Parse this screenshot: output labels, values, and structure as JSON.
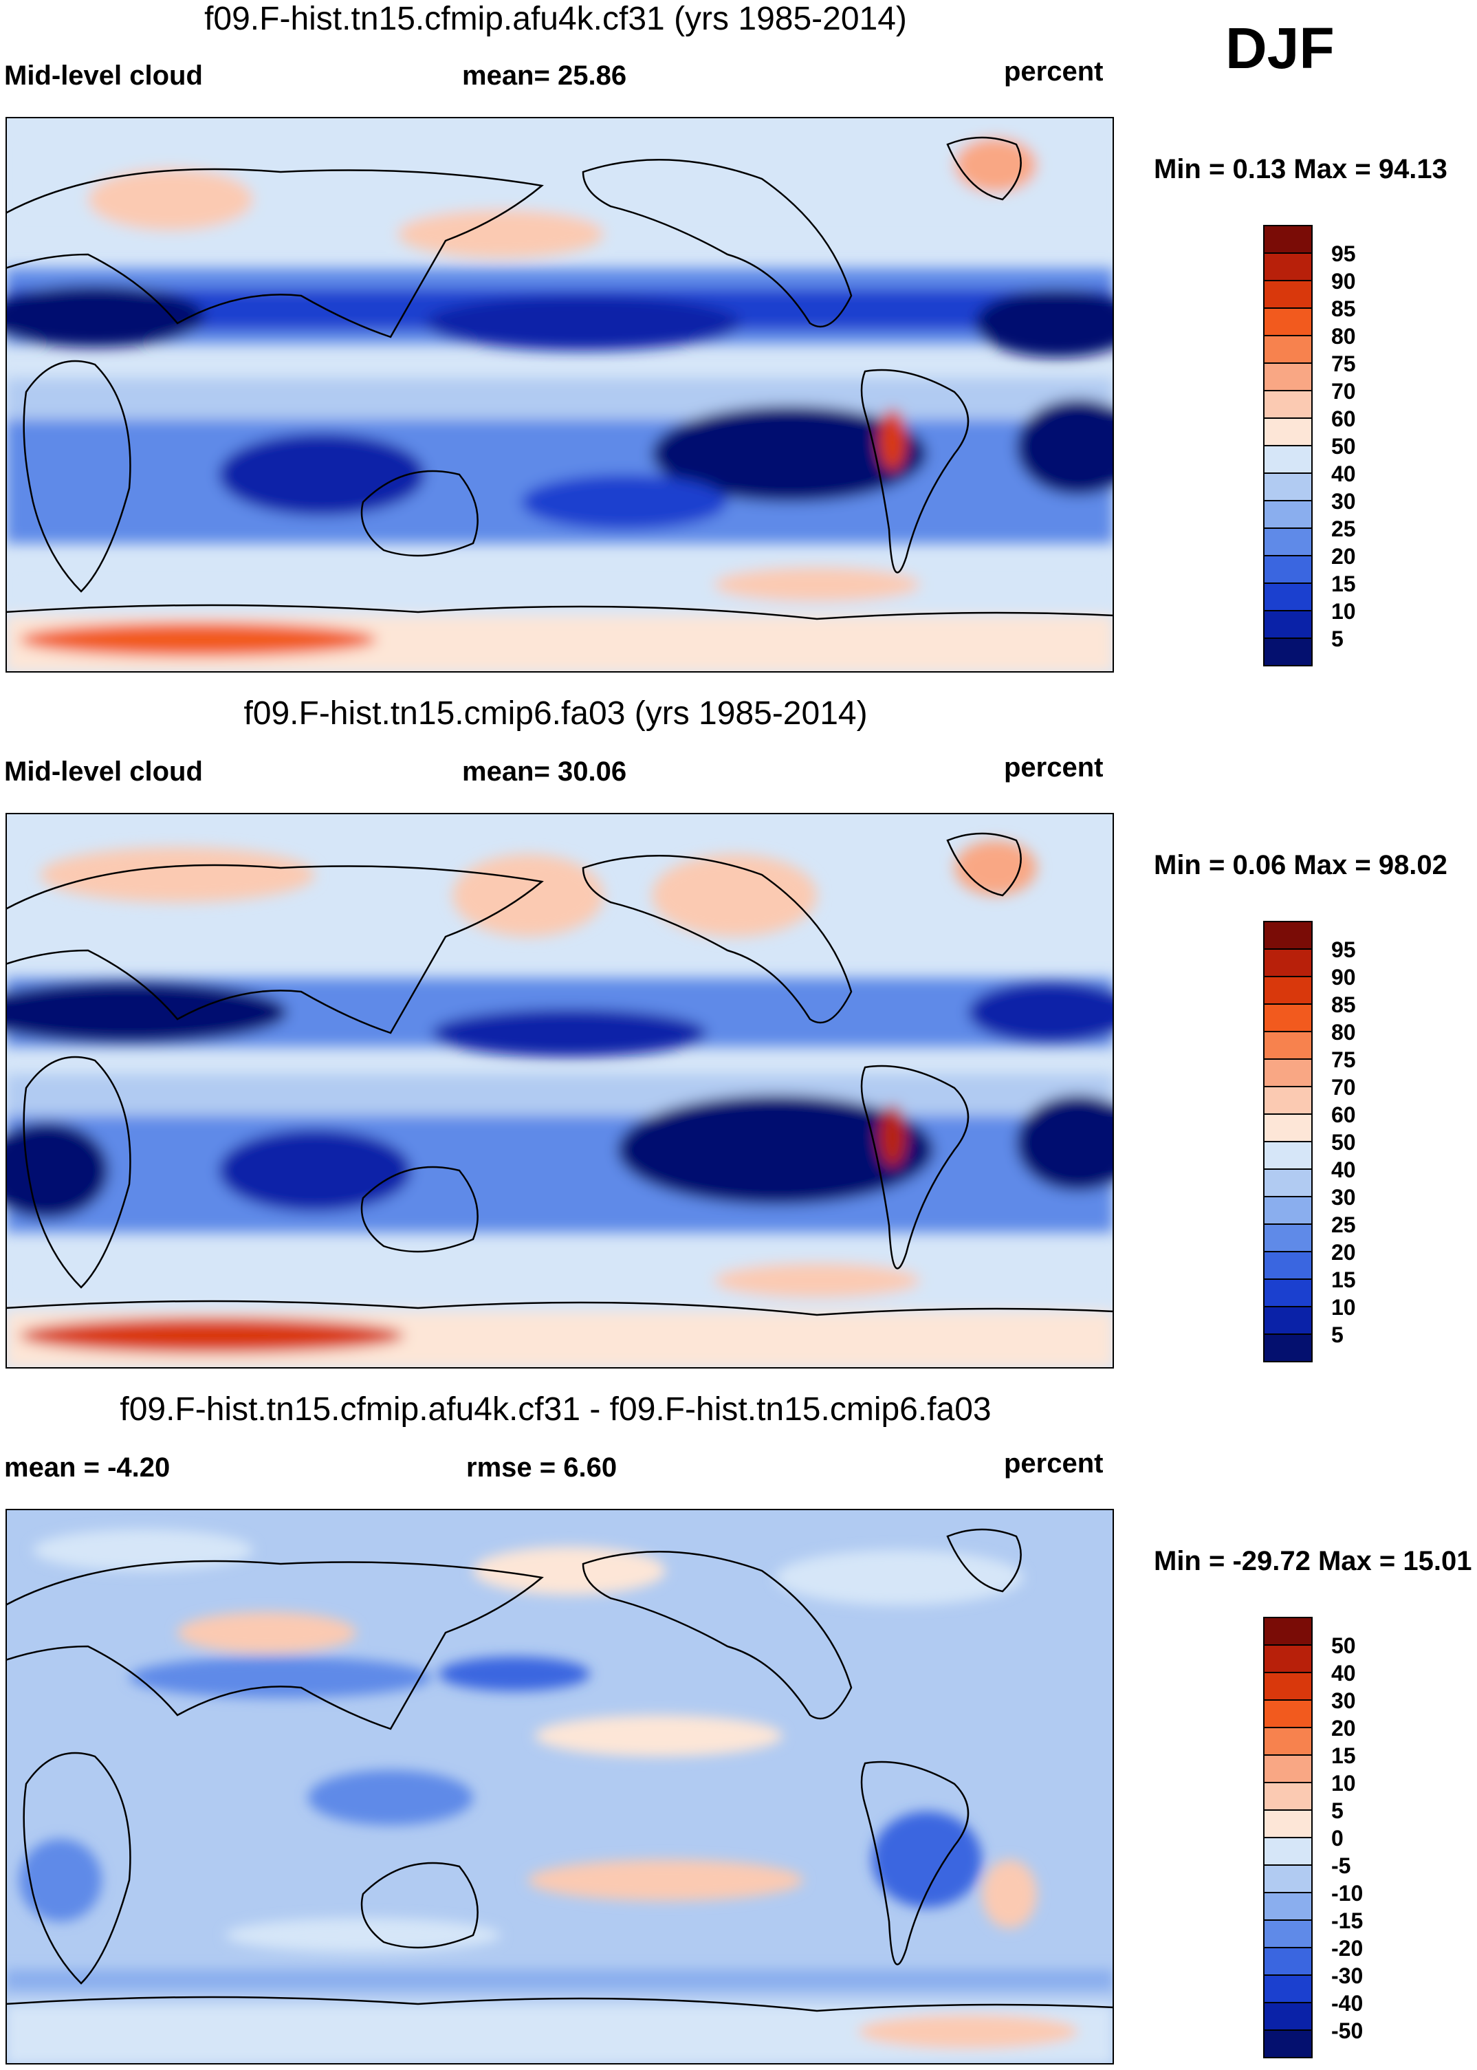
{
  "season": "DJF",
  "chart_data": [
    {
      "type": "heatmap",
      "title": "f09.F-hist.tn15.cfmip.afu4k.cf31 (yrs 1985-2014)",
      "left_label": "Mid-level cloud",
      "center_label": "mean=  25.86",
      "units": "percent",
      "minmax": "Min =   0.13 Max =  94.13",
      "min": 0.13,
      "max": 94.13,
      "mean": 25.86,
      "colorbar": {
        "labels": [
          "95",
          "90",
          "85",
          "80",
          "75",
          "70",
          "60",
          "50",
          "40",
          "30",
          "25",
          "20",
          "15",
          "10",
          "5"
        ],
        "colors": [
          "#7a0c06",
          "#b8200a",
          "#d9380c",
          "#f25a1e",
          "#f7824e",
          "#f9a784",
          "#fbcab2",
          "#fde6d7",
          "#d6e6f8",
          "#b1cbf2",
          "#8aaeee",
          "#5f8ae8",
          "#3a66e0",
          "#1b40cf",
          "#0a22a8",
          "#04106f"
        ]
      }
    },
    {
      "type": "heatmap",
      "title": "f09.F-hist.tn15.cmip6.fa03 (yrs 1985-2014)",
      "left_label": "Mid-level cloud",
      "center_label": "mean=  30.06",
      "units": "percent",
      "minmax": "Min =   0.06 Max =  98.02",
      "min": 0.06,
      "max": 98.02,
      "mean": 30.06,
      "colorbar": {
        "labels": [
          "95",
          "90",
          "85",
          "80",
          "75",
          "70",
          "60",
          "50",
          "40",
          "30",
          "25",
          "20",
          "15",
          "10",
          "5"
        ],
        "colors": [
          "#7a0c06",
          "#b8200a",
          "#d9380c",
          "#f25a1e",
          "#f7824e",
          "#f9a784",
          "#fbcab2",
          "#fde6d7",
          "#d6e6f8",
          "#b1cbf2",
          "#8aaeee",
          "#5f8ae8",
          "#3a66e0",
          "#1b40cf",
          "#0a22a8",
          "#04106f"
        ]
      }
    },
    {
      "type": "heatmap",
      "title": "f09.F-hist.tn15.cfmip.afu4k.cf31 - f09.F-hist.tn15.cmip6.fa03",
      "left_label": "mean =  -4.20",
      "center_label": "rmse =   6.60",
      "units": "percent",
      "minmax": "Min = -29.72 Max =  15.01",
      "min": -29.72,
      "max": 15.01,
      "mean": -4.2,
      "rmse": 6.6,
      "colorbar": {
        "labels": [
          "50",
          "40",
          "30",
          "20",
          "15",
          "10",
          "5",
          "0",
          "-5",
          "-10",
          "-15",
          "-20",
          "-30",
          "-40",
          "-50"
        ],
        "colors": [
          "#7a0c06",
          "#b8200a",
          "#d9380c",
          "#f25a1e",
          "#f7824e",
          "#f9a784",
          "#fbcab2",
          "#fde6d7",
          "#d6e6f8",
          "#b1cbf2",
          "#8aaeee",
          "#5f8ae8",
          "#3a66e0",
          "#1b40cf",
          "#0a22a8",
          "#04106f"
        ]
      }
    }
  ]
}
